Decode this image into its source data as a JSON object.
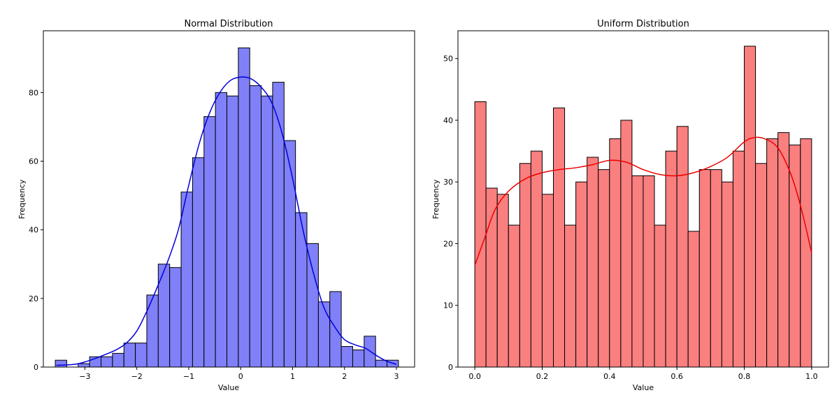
{
  "chart_data": [
    {
      "type": "bar",
      "title": "Normal Distribution",
      "xlabel": "Value",
      "ylabel": "Frequency",
      "bar_color": "#8080f8",
      "kde_color": "#0000dd",
      "xlim": [
        -3.8,
        3.35
      ],
      "ylim": [
        0,
        98
      ],
      "xticks": [
        -3,
        -2,
        -1,
        0,
        1,
        2,
        3
      ],
      "xtick_labels": [
        "−3",
        "−2",
        "−1",
        "0",
        "1",
        "2",
        "3"
      ],
      "yticks": [
        0,
        20,
        40,
        60,
        80
      ],
      "yticks_labels": [
        "0",
        "20",
        "40",
        "60",
        "80"
      ],
      "bin_start": -3.57,
      "bin_width": 0.2203,
      "values": [
        2,
        0,
        1,
        3,
        3,
        4,
        7,
        7,
        21,
        30,
        29,
        51,
        61,
        73,
        80,
        79,
        93,
        82,
        79,
        83,
        66,
        45,
        36,
        19,
        22,
        6,
        5,
        9,
        2,
        2
      ],
      "kde": {
        "x": [
          -3.55,
          -3.2,
          -3.0,
          -2.8,
          -2.6,
          -2.4,
          -2.2,
          -2.0,
          -1.8,
          -1.6,
          -1.4,
          -1.2,
          -1.0,
          -0.8,
          -0.6,
          -0.4,
          -0.2,
          0.0,
          0.2,
          0.4,
          0.6,
          0.8,
          1.0,
          1.2,
          1.4,
          1.6,
          1.8,
          2.0,
          2.2,
          2.4,
          2.6,
          2.8,
          3.0
        ],
        "y": [
          0.5,
          0.8,
          1.5,
          2.5,
          3.7,
          5.0,
          7.0,
          10.5,
          16.5,
          23.5,
          31.0,
          40.0,
          53.0,
          65.0,
          74.0,
          80.0,
          83.5,
          84.5,
          84.0,
          81.5,
          77.0,
          68.0,
          55.0,
          40.0,
          27.5,
          17.5,
          12.0,
          8.0,
          6.5,
          5.5,
          3.5,
          1.8,
          0.8
        ]
      }
    },
    {
      "type": "bar",
      "title": "Uniform Distribution",
      "xlabel": "Value",
      "ylabel": "Frequency",
      "bar_color": "#fa7f7f",
      "kde_color": "#ee0000",
      "xlim": [
        -0.05,
        1.05
      ],
      "ylim": [
        0,
        54.5
      ],
      "xticks": [
        0,
        0.2,
        0.4,
        0.6,
        0.8,
        1.0
      ],
      "xtick_labels": [
        "0.0",
        "0.2",
        "0.4",
        "0.6",
        "0.8",
        "1.0"
      ],
      "yticks": [
        0,
        10,
        20,
        30,
        40,
        50
      ],
      "yticks_labels": [
        "0",
        "10",
        "20",
        "30",
        "40",
        "50"
      ],
      "bin_start": 0.0,
      "bin_width": 0.03333,
      "values": [
        43,
        29,
        28,
        23,
        33,
        35,
        28,
        42,
        23,
        30,
        34,
        32,
        37,
        40,
        31,
        31,
        23,
        35,
        39,
        22,
        32,
        32,
        30,
        35,
        52,
        33,
        37,
        38,
        36,
        37
      ],
      "kde": {
        "x": [
          0.0,
          0.03,
          0.06,
          0.1,
          0.15,
          0.2,
          0.25,
          0.3,
          0.35,
          0.4,
          0.45,
          0.5,
          0.55,
          0.6,
          0.65,
          0.7,
          0.75,
          0.8,
          0.83,
          0.86,
          0.9,
          0.94,
          0.97,
          1.0
        ],
        "y": [
          16.5,
          21.0,
          25.5,
          28.5,
          30.5,
          31.5,
          32.0,
          32.3,
          32.8,
          33.5,
          33.2,
          32.0,
          31.2,
          31.0,
          31.5,
          32.5,
          34.0,
          36.5,
          37.2,
          37.0,
          35.5,
          31.0,
          25.5,
          18.5
        ]
      }
    }
  ]
}
